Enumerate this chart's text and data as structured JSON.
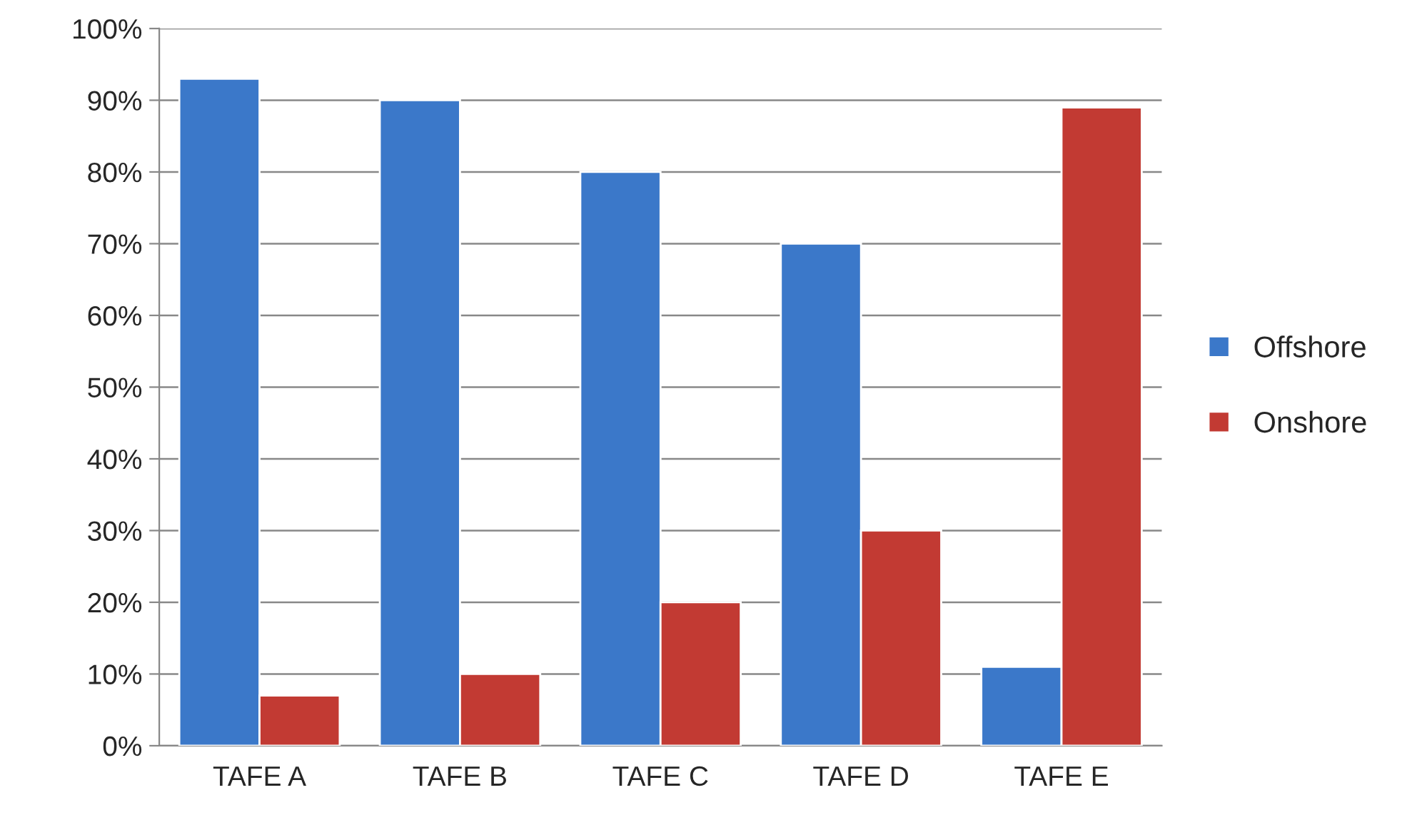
{
  "chart_data": {
    "type": "bar",
    "categories": [
      "TAFE A",
      "TAFE B",
      "TAFE C",
      "TAFE D",
      "TAFE E"
    ],
    "series": [
      {
        "name": "Offshore",
        "color": "#3b78c9",
        "values": [
          93,
          90,
          80,
          70,
          11
        ]
      },
      {
        "name": "Onshore",
        "color": "#c23a33",
        "values": [
          7,
          10,
          20,
          30,
          89
        ]
      }
    ],
    "ylim": [
      0,
      100
    ],
    "yticks": [
      {
        "value": 0,
        "label": "0%"
      },
      {
        "value": 10,
        "label": "10%"
      },
      {
        "value": 20,
        "label": "20%"
      },
      {
        "value": 30,
        "label": "30%"
      },
      {
        "value": 40,
        "label": "40%"
      },
      {
        "value": 50,
        "label": "50%"
      },
      {
        "value": 60,
        "label": "60%"
      },
      {
        "value": 70,
        "label": "70%"
      },
      {
        "value": 80,
        "label": "80%"
      },
      {
        "value": 90,
        "label": "90%"
      },
      {
        "value": 100,
        "label": "100%"
      }
    ],
    "grid": "y",
    "legend": "right"
  }
}
